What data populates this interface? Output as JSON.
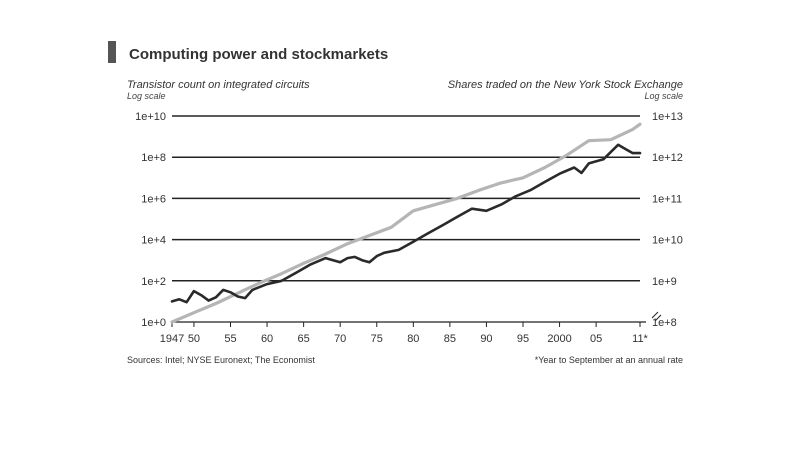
{
  "chart_data": {
    "type": "line",
    "title": "Computing power and stockmarkets",
    "left_axis": {
      "label": "Transistor count on integrated circuits",
      "scale_note": "Log scale",
      "ticks": [
        "1e+0",
        "1e+2",
        "1e+4",
        "1e+6",
        "1e+8",
        "1e+10"
      ],
      "log_min": 0,
      "log_max": 10
    },
    "right_axis": {
      "label": "Shares traded on the New York Stock Exchange",
      "scale_note": "Log scale",
      "ticks": [
        "1e+8",
        "1e+9",
        "1e+10",
        "1e+11",
        "1e+12",
        "1e+13"
      ],
      "log_min": 8,
      "log_max": 13
    },
    "x_ticks": [
      "1947",
      "50",
      "55",
      "60",
      "65",
      "70",
      "75",
      "80",
      "85",
      "90",
      "95",
      "2000",
      "05",
      "11*"
    ],
    "x_tick_years": [
      1947,
      1950,
      1955,
      1960,
      1965,
      1970,
      1975,
      1980,
      1985,
      1990,
      1995,
      2000,
      2005,
      2011
    ],
    "xlim": [
      1947,
      2011
    ],
    "grid": true,
    "series": [
      {
        "axis": "left",
        "color": "#b5b5b5",
        "x": [
          1947,
          1950,
          1953,
          1956,
          1959,
          1962,
          1965,
          1968,
          1971,
          1974,
          1977,
          1980,
          1983,
          1986,
          1989,
          1992,
          1995,
          1998,
          2001,
          2004,
          2007,
          2010,
          2011
        ],
        "log_values": [
          0,
          0.45,
          0.9,
          1.4,
          1.9,
          2.35,
          2.85,
          3.3,
          3.8,
          4.2,
          4.6,
          5.4,
          5.7,
          6.0,
          6.4,
          6.75,
          7.0,
          7.5,
          8.1,
          8.8,
          8.85,
          9.35,
          9.6
        ]
      },
      {
        "axis": "right",
        "color": "#2a2a2a",
        "x": [
          1947,
          1948,
          1949,
          1950,
          1951,
          1952,
          1953,
          1954,
          1955,
          1956,
          1957,
          1958,
          1960,
          1962,
          1964,
          1966,
          1968,
          1970,
          1971,
          1972,
          1973,
          1974,
          1975,
          1976,
          1978,
          1980,
          1982,
          1984,
          1986,
          1988,
          1990,
          1992,
          1994,
          1996,
          1998,
          2000,
          2002,
          2003,
          2004,
          2006,
          2008,
          2009,
          2010,
          2011
        ],
        "log_values": [
          8.5,
          8.55,
          8.48,
          8.75,
          8.65,
          8.52,
          8.6,
          8.78,
          8.72,
          8.62,
          8.58,
          8.78,
          8.92,
          9.0,
          9.2,
          9.4,
          9.55,
          9.45,
          9.55,
          9.58,
          9.5,
          9.45,
          9.6,
          9.68,
          9.75,
          9.95,
          10.15,
          10.35,
          10.55,
          10.75,
          10.7,
          10.85,
          11.05,
          11.2,
          11.4,
          11.6,
          11.75,
          11.62,
          11.85,
          11.95,
          12.3,
          12.2,
          12.1,
          12.1
        ]
      }
    ]
  },
  "sources": "Sources: Intel; NYSE Euronext; The Economist",
  "footnote": "*Year to September at an annual rate"
}
